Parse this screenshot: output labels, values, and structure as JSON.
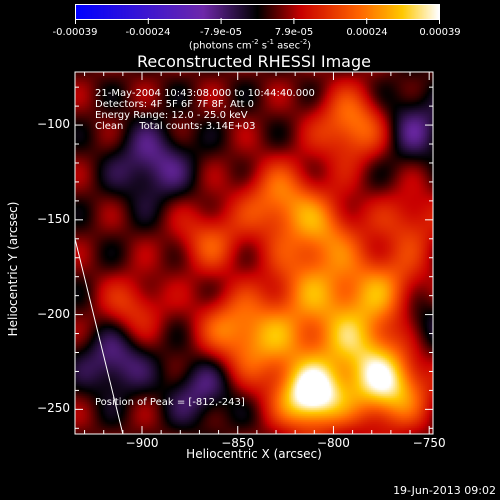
{
  "chart_data": {
    "type": "heatmap",
    "title": "Reconstructed RHESSI Image",
    "xlabel": "Heliocentric X (arcsec)",
    "ylabel": "Heliocentric Y (arcsec)",
    "xlim": [
      -935,
      -748
    ],
    "ylim": [
      -263,
      -72
    ],
    "x_ticks": [
      -900,
      -850,
      -800,
      -750
    ],
    "y_ticks": [
      -100,
      -150,
      -200,
      -250
    ],
    "colorbar": {
      "range": [
        -0.00039,
        0.00039
      ],
      "tick_labels": [
        "-0.00039",
        "-0.00024",
        "-7.9e-05",
        "7.9e-05",
        "0.00024",
        "0.00039"
      ],
      "unit_main": "(photons cm",
      "unit_sup1": "-2",
      "unit_mid1": " s",
      "unit_sup2": "-1",
      "unit_mid2": " asec",
      "unit_sup3": "-2",
      "unit_end": ")"
    },
    "annotations": {
      "line1": "21-May-2004 10:43:08.000 to 10:44:40.000",
      "line2": "Detectors: 4F 5F 6F 7F 8F, Att 0",
      "line3": "Energy Range: 12.0 - 25.0 keV",
      "line4": "Clean     Total counts: 3.14E+03",
      "peak": "Position of Peak = [-812,-243]"
    },
    "limb_line": [
      [
        -935,
        -160
      ],
      [
        -910,
        -263
      ]
    ],
    "grid": "off",
    "image_sources": [
      {
        "x": -812,
        "y": -243,
        "amp": 1.0,
        "sigma": 12
      },
      {
        "x": -772,
        "y": -238,
        "amp": 0.75,
        "sigma": 14
      },
      {
        "x": -790,
        "y": -215,
        "amp": 0.55,
        "sigma": 16
      },
      {
        "x": -835,
        "y": -215,
        "amp": 0.5,
        "sigma": 15
      },
      {
        "x": -812,
        "y": -185,
        "amp": 0.45,
        "sigma": 16
      },
      {
        "x": -775,
        "y": -185,
        "amp": 0.45,
        "sigma": 15
      },
      {
        "x": -828,
        "y": -140,
        "amp": 0.5,
        "sigma": 14
      },
      {
        "x": -790,
        "y": -100,
        "amp": 0.55,
        "sigma": 13
      },
      {
        "x": -805,
        "y": -155,
        "amp": 0.4,
        "sigma": 13
      },
      {
        "x": -865,
        "y": -160,
        "amp": 0.35,
        "sigma": 12
      },
      {
        "x": -905,
        "y": -195,
        "amp": 0.3,
        "sigma": 11
      },
      {
        "x": -855,
        "y": -205,
        "amp": 0.35,
        "sigma": 12
      },
      {
        "x": -760,
        "y": -150,
        "amp": 0.3,
        "sigma": 12
      },
      {
        "x": -895,
        "y": -120,
        "amp": -0.35,
        "sigma": 14
      },
      {
        "x": -915,
        "y": -225,
        "amp": -0.35,
        "sigma": 12
      },
      {
        "x": -760,
        "y": -100,
        "amp": -0.3,
        "sigma": 14
      },
      {
        "x": -870,
        "y": -240,
        "amp": -0.3,
        "sigma": 12
      },
      {
        "x": -755,
        "y": -205,
        "amp": -0.25,
        "sigma": 11
      }
    ]
  },
  "footer": {
    "timestamp": "19-Jun-2013 09:02"
  }
}
